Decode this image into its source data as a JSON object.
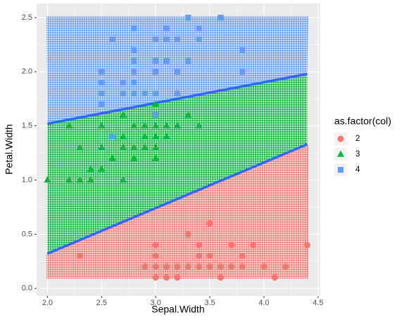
{
  "chart_data": {
    "type": "scatter",
    "x_label": "Sepal.Width",
    "y_label": "Petal.Width",
    "legend_title": "as.factor(col)",
    "legend_position": "right",
    "grid": true,
    "xlim": [
      1.9,
      4.52
    ],
    "ylim": [
      -0.07,
      2.63
    ],
    "xticks": [
      {
        "value": 2.0,
        "label": "2.0"
      },
      {
        "value": 2.5,
        "label": "2.5"
      },
      {
        "value": 3.0,
        "label": "3.0"
      },
      {
        "value": 3.5,
        "label": "3.5"
      },
      {
        "value": 4.0,
        "label": "4.0"
      },
      {
        "value": 4.5,
        "label": "4.5"
      }
    ],
    "yticks": [
      {
        "value": 0.0,
        "label": "0.0"
      },
      {
        "value": 0.5,
        "label": "0.5"
      },
      {
        "value": 1.0,
        "label": "1.0"
      },
      {
        "value": 1.5,
        "label": "1.5"
      },
      {
        "value": 2.0,
        "label": "2.0"
      },
      {
        "value": 2.5,
        "label": "2.5"
      }
    ],
    "region_extent": {
      "x": [
        2.0,
        4.4
      ],
      "y": [
        0.1,
        2.5
      ]
    },
    "boundaries": [
      {
        "color": "#3366ff",
        "x": [
          2.0,
          4.4
        ],
        "values": [
          0.32,
          1.33
        ]
      },
      {
        "color": "#3366ff",
        "x": [
          2.0,
          4.4
        ],
        "values": [
          1.52,
          1.98
        ]
      }
    ],
    "series": [
      {
        "name": "2",
        "color": "#f8766d",
        "shape": "circle",
        "x": [
          2.3,
          2.9,
          3.0,
          3.0,
          3.0,
          3.1,
          3.1,
          3.2,
          3.3,
          3.3,
          3.4,
          3.4,
          3.4,
          3.5,
          3.5,
          3.5,
          3.6,
          3.6,
          3.7,
          3.7,
          3.8,
          3.8,
          3.9,
          4.0,
          4.1,
          4.2,
          4.4,
          3.2,
          3.0
        ],
        "values": [
          0.3,
          0.2,
          0.2,
          0.1,
          0.3,
          0.2,
          0.1,
          0.2,
          0.2,
          0.5,
          0.2,
          0.4,
          0.3,
          0.2,
          0.3,
          0.6,
          0.2,
          0.1,
          0.2,
          0.4,
          0.3,
          0.2,
          0.4,
          0.2,
          0.1,
          0.2,
          0.4,
          0.1,
          0.4
        ]
      },
      {
        "name": "3",
        "color": "#00ba38",
        "shape": "triangle",
        "x": [
          2.0,
          2.2,
          2.2,
          2.3,
          2.3,
          2.4,
          2.4,
          2.5,
          2.5,
          2.5,
          2.6,
          2.6,
          2.7,
          2.7,
          2.7,
          2.7,
          2.8,
          2.8,
          2.8,
          2.9,
          2.9,
          2.9,
          3.0,
          3.0,
          3.0,
          3.0,
          3.0,
          3.1,
          3.2,
          3.2,
          3.3,
          3.4,
          3.1
        ],
        "values": [
          1.0,
          1.0,
          1.5,
          1.3,
          1.0,
          1.0,
          1.1,
          1.1,
          1.3,
          1.5,
          1.2,
          1.4,
          1.0,
          1.3,
          1.4,
          1.6,
          1.3,
          1.5,
          1.2,
          1.3,
          1.4,
          1.5,
          1.5,
          1.4,
          1.3,
          1.2,
          1.7,
          1.5,
          1.5,
          1.8,
          1.6,
          1.5,
          1.4
        ]
      },
      {
        "name": "4",
        "color": "#619cff",
        "shape": "square",
        "x": [
          2.5,
          2.5,
          2.5,
          2.5,
          2.6,
          2.6,
          2.7,
          2.7,
          2.8,
          2.8,
          2.8,
          2.8,
          2.8,
          2.8,
          2.9,
          3.0,
          3.0,
          3.0,
          3.0,
          3.1,
          3.1,
          3.1,
          3.2,
          3.2,
          3.2,
          3.3,
          3.3,
          3.4,
          3.6,
          3.8,
          3.8,
          3.0,
          3.4
        ],
        "values": [
          1.7,
          1.8,
          1.9,
          2.0,
          1.4,
          2.3,
          1.9,
          1.8,
          1.8,
          1.9,
          2.0,
          2.1,
          2.2,
          2.4,
          1.8,
          1.8,
          2.1,
          2.3,
          1.6,
          2.1,
          2.3,
          2.4,
          2.3,
          1.8,
          2.0,
          2.1,
          2.5,
          2.4,
          2.5,
          2.0,
          2.2,
          2.0,
          2.3
        ]
      }
    ]
  }
}
